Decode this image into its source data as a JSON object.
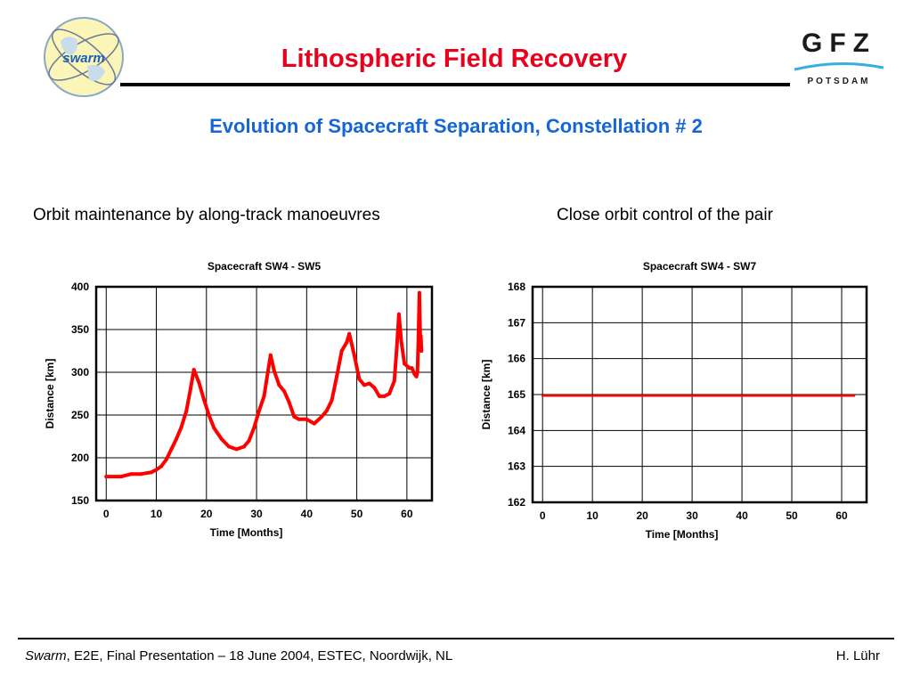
{
  "slide": {
    "title": "Lithospheric Field Recovery",
    "subtitle": "Evolution of Spacecraft Separation,  Constellation # 2",
    "caption_left": "Orbit maintenance by along-track manoeuvres",
    "caption_right": "Close orbit control of the pair",
    "footer_italic": "Swarm",
    "footer_text": ", E2E, Final Presentation – 18 June 2004, ESTEC, Noordwijk, NL",
    "footer_author": "H. Lühr",
    "logo_left_text": "swarm",
    "logo_right_text": "GFZ",
    "logo_right_subtext": "POTSDAM",
    "colors": {
      "title": "#e8001c",
      "subtitle": "#1666d6",
      "series": "#ff0000"
    }
  },
  "chart_data": [
    {
      "type": "line",
      "title": "Spacecraft SW4 - SW5",
      "xlabel": "Time [Months]",
      "ylabel": "Distance [km]",
      "xlim": [
        -2,
        65
      ],
      "ylim": [
        150,
        400
      ],
      "xticks": [
        0,
        10,
        20,
        30,
        40,
        50,
        60
      ],
      "yticks": [
        150,
        200,
        250,
        300,
        350,
        400
      ],
      "grid": true,
      "series": [
        {
          "x": [
            0,
            3,
            5,
            7,
            9,
            10,
            11,
            12,
            13,
            14,
            15,
            16,
            16.8,
            17.5,
            18.5,
            19.5,
            20.5,
            21.5,
            23,
            24.5,
            26,
            27.5,
            28.5,
            29.5,
            30.5,
            31.5,
            32.3,
            32.8,
            33.5,
            34.5,
            35.5,
            36.5,
            37.5,
            38.5,
            40,
            41.5,
            43,
            44,
            45,
            46,
            47,
            48,
            48.5,
            49.5,
            50.5,
            51.5,
            52.5,
            53.5,
            54.5,
            55.5,
            56.5,
            57.5,
            58,
            58.4,
            58.9,
            59.5,
            60.5,
            61,
            61.5,
            61.9,
            62.1,
            62.3,
            62.5,
            62.6,
            62.7,
            62.8,
            62.9
          ],
          "y": [
            178,
            178,
            181,
            181,
            183,
            186,
            190,
            198,
            210,
            222,
            236,
            255,
            280,
            303,
            288,
            268,
            250,
            235,
            222,
            213,
            210,
            213,
            220,
            235,
            255,
            272,
            302,
            320,
            302,
            285,
            278,
            265,
            248,
            245,
            245,
            240,
            248,
            255,
            267,
            295,
            325,
            335,
            345,
            320,
            292,
            285,
            287,
            282,
            272,
            272,
            275,
            290,
            330,
            368,
            335,
            310,
            305,
            305,
            298,
            295,
            300,
            340,
            393,
            360,
            335,
            342,
            325
          ]
        }
      ]
    },
    {
      "type": "line",
      "title": "Spacecraft SW4 - SW7",
      "xlabel": "Time [Months]",
      "ylabel": "Distance [km]",
      "xlim": [
        -2,
        65
      ],
      "ylim": [
        162,
        168
      ],
      "xticks": [
        0,
        10,
        20,
        30,
        40,
        50,
        60
      ],
      "yticks": [
        162,
        163,
        164,
        165,
        166,
        167,
        168
      ],
      "grid": true,
      "series": [
        {
          "x": [
            0,
            10,
            20,
            30,
            40,
            50,
            60,
            62.5
          ],
          "y": [
            164.97,
            164.97,
            164.97,
            164.97,
            164.97,
            164.97,
            164.97,
            164.97
          ]
        }
      ]
    }
  ]
}
